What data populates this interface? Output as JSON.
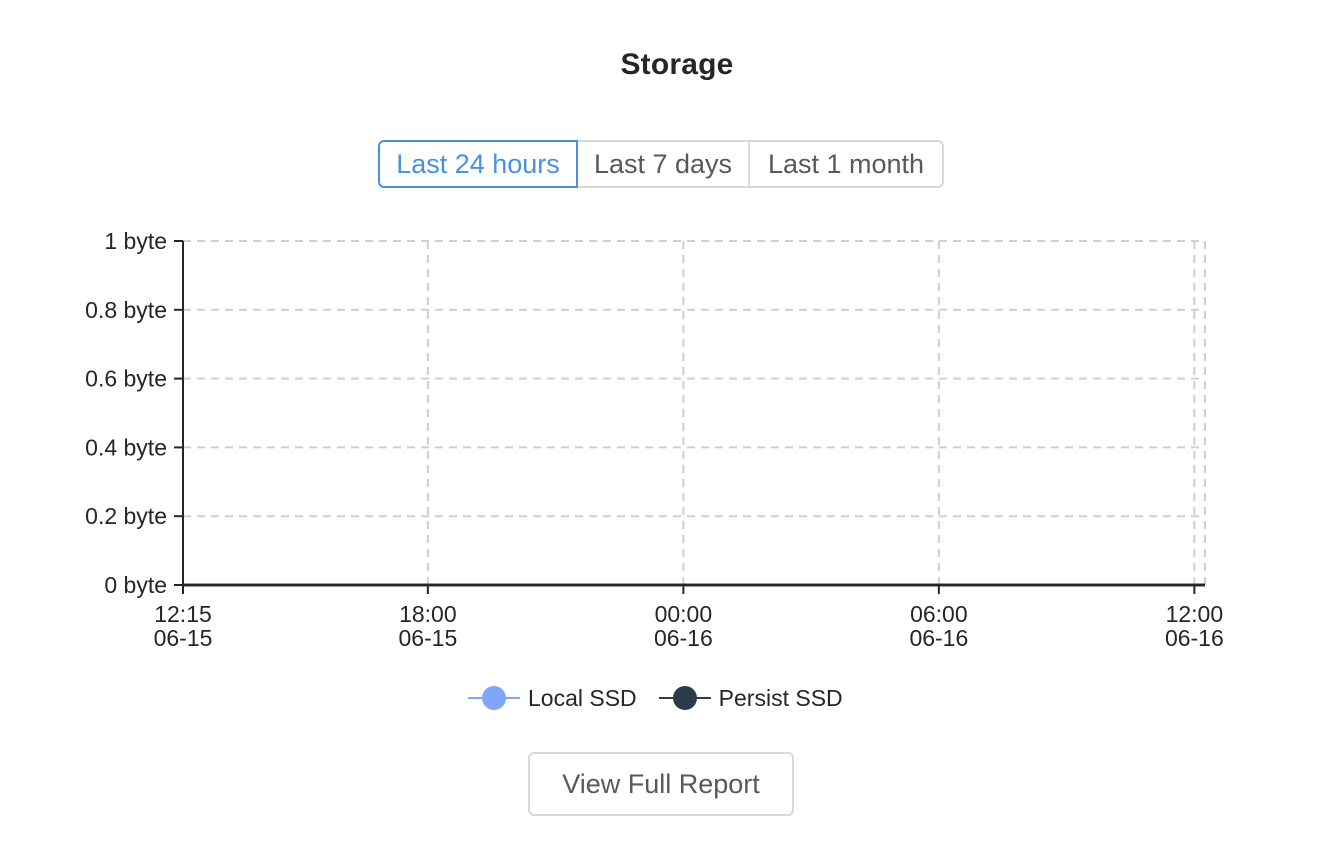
{
  "panel": {
    "title": "Storage"
  },
  "time_range": {
    "options": [
      "Last 24 hours",
      "Last 7 days",
      "Last 1 month"
    ],
    "selected": "Last 24 hours"
  },
  "chart_data": {
    "type": "line",
    "title": "",
    "xlabel": "",
    "ylabel": "",
    "x_ticks": [
      {
        "time": "12:15",
        "date": "06-15"
      },
      {
        "time": "18:00",
        "date": "06-15"
      },
      {
        "time": "00:00",
        "date": "06-16"
      },
      {
        "time": "06:00",
        "date": "06-16"
      },
      {
        "time": "12:00",
        "date": "06-16"
      }
    ],
    "x_tick_hours": [
      0,
      5.75,
      11.75,
      17.75,
      23.75
    ],
    "x_range_hours": [
      0,
      24
    ],
    "y_ticks": [
      0,
      0.2,
      0.4,
      0.6,
      0.8,
      1
    ],
    "y_unit": "byte",
    "ylim": [
      0,
      1
    ],
    "grid": true,
    "legend_position": "bottom",
    "series": [
      {
        "name": "Local SSD",
        "color": "#7fa7f5",
        "x_hours": [
          0,
          24
        ],
        "values": [
          0,
          0
        ]
      },
      {
        "name": "Persist SSD",
        "color": "#2b3b4b",
        "x_hours": [
          0,
          24
        ],
        "values": [
          0,
          0
        ]
      }
    ]
  },
  "actions": {
    "view_report_label": "View Full Report"
  }
}
